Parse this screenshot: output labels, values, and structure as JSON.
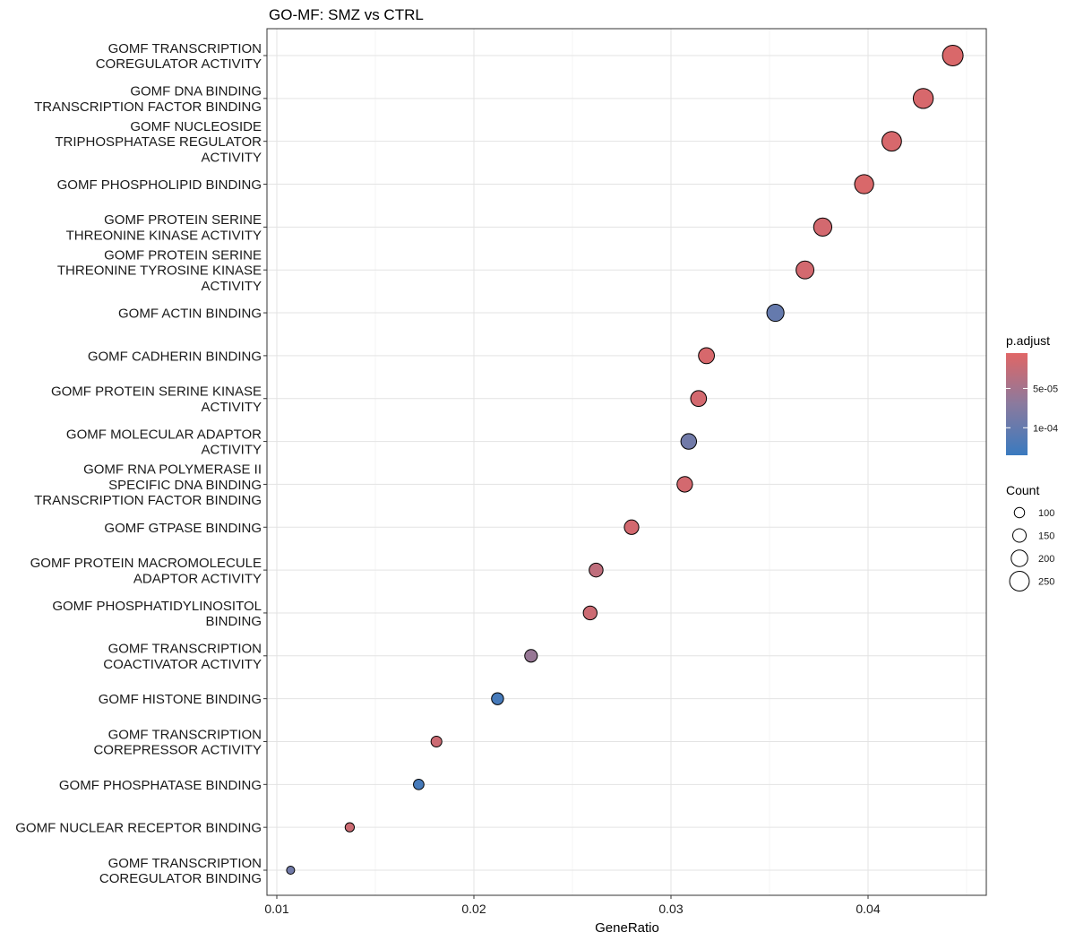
{
  "chart_data": {
    "type": "scatter",
    "title": "GO-MF: SMZ vs CTRL",
    "xlabel": "GeneRatio",
    "ylabel": "",
    "xlim": [
      0.0095,
      0.046
    ],
    "xticks": [
      0.01,
      0.02,
      0.03,
      0.04
    ],
    "xtick_labels": [
      "0.01",
      "0.02",
      "0.03",
      "0.04"
    ],
    "grid": true,
    "points": [
      {
        "label": [
          "GOMF TRANSCRIPTION",
          "COREGULATOR ACTIVITY"
        ],
        "x": 0.0443,
        "count": 265,
        "padj": 1e-05
      },
      {
        "label": [
          "GOMF DNA BINDING",
          "TRANSCRIPTION FACTOR BINDING"
        ],
        "x": 0.0428,
        "count": 255,
        "padj": 1.2e-05
      },
      {
        "label": [
          "GOMF NUCLEOSIDE",
          "TRIPHOSPHATASE REGULATOR",
          "ACTIVITY"
        ],
        "x": 0.0412,
        "count": 248,
        "padj": 1.2e-05
      },
      {
        "label": [
          "GOMF PHOSPHOLIPID BINDING"
        ],
        "x": 0.0398,
        "count": 240,
        "padj": 1e-05
      },
      {
        "label": [
          "GOMF PROTEIN SERINE",
          "THREONINE KINASE ACTIVITY"
        ],
        "x": 0.0377,
        "count": 225,
        "padj": 1.5e-05
      },
      {
        "label": [
          "GOMF PROTEIN SERINE",
          "THREONINE TYROSINE KINASE",
          "ACTIVITY"
        ],
        "x": 0.0368,
        "count": 220,
        "padj": 1.5e-05
      },
      {
        "label": [
          "GOMF ACTIN BINDING"
        ],
        "x": 0.0353,
        "count": 210,
        "padj": 0.0001
      },
      {
        "label": [
          "GOMF CADHERIN BINDING"
        ],
        "x": 0.0318,
        "count": 190,
        "padj": 1.2e-05
      },
      {
        "label": [
          "GOMF PROTEIN SERINE KINASE",
          "ACTIVITY"
        ],
        "x": 0.0314,
        "count": 188,
        "padj": 1.5e-05
      },
      {
        "label": [
          "GOMF MOLECULAR ADAPTOR",
          "ACTIVITY"
        ],
        "x": 0.0309,
        "count": 185,
        "padj": 9e-05
      },
      {
        "label": [
          "GOMF RNA POLYMERASE II",
          "SPECIFIC DNA BINDING",
          "TRANSCRIPTION FACTOR BINDING"
        ],
        "x": 0.0307,
        "count": 183,
        "padj": 1.5e-05
      },
      {
        "label": [
          "GOMF GTPASE BINDING"
        ],
        "x": 0.028,
        "count": 167,
        "padj": 1.5e-05
      },
      {
        "label": [
          "GOMF PROTEIN MACROMOLECULE",
          "ADAPTOR ACTIVITY"
        ],
        "x": 0.0262,
        "count": 157,
        "padj": 3e-05
      },
      {
        "label": [
          "GOMF PHOSPHATIDYLINOSITOL",
          "BINDING"
        ],
        "x": 0.0259,
        "count": 155,
        "padj": 2e-05
      },
      {
        "label": [
          "GOMF TRANSCRIPTION",
          "COACTIVATOR ACTIVITY"
        ],
        "x": 0.0229,
        "count": 137,
        "padj": 6e-05
      },
      {
        "label": [
          "GOMF HISTONE BINDING"
        ],
        "x": 0.0212,
        "count": 127,
        "padj": 0.000125
      },
      {
        "label": [
          "GOMF TRANSCRIPTION",
          "COREPRESSOR ACTIVITY"
        ],
        "x": 0.0181,
        "count": 108,
        "padj": 2e-05
      },
      {
        "label": [
          "GOMF PHOSPHATASE BINDING"
        ],
        "x": 0.0172,
        "count": 103,
        "padj": 0.000125
      },
      {
        "label": [
          "GOMF NUCLEAR RECEPTOR BINDING"
        ],
        "x": 0.0137,
        "count": 82,
        "padj": 2e-05
      },
      {
        "label": [
          "GOMF TRANSCRIPTION",
          "COREGULATOR BINDING"
        ],
        "x": 0.0107,
        "count": 64,
        "padj": 9e-05
      }
    ],
    "color_legend": {
      "title": "p.adjust",
      "tick_values": [
        5e-05,
        0.0001
      ],
      "tick_labels": [
        "5e-05",
        "1e-04"
      ],
      "range": [
        5e-06,
        0.000135
      ],
      "low_color": "#e06666",
      "mid_color": "#8a7a9e",
      "high_color": "#3a7abf"
    },
    "size_legend": {
      "title": "Count",
      "values": [
        100,
        150,
        200,
        250
      ],
      "labels": [
        "100",
        "150",
        "200",
        "250"
      ]
    }
  }
}
